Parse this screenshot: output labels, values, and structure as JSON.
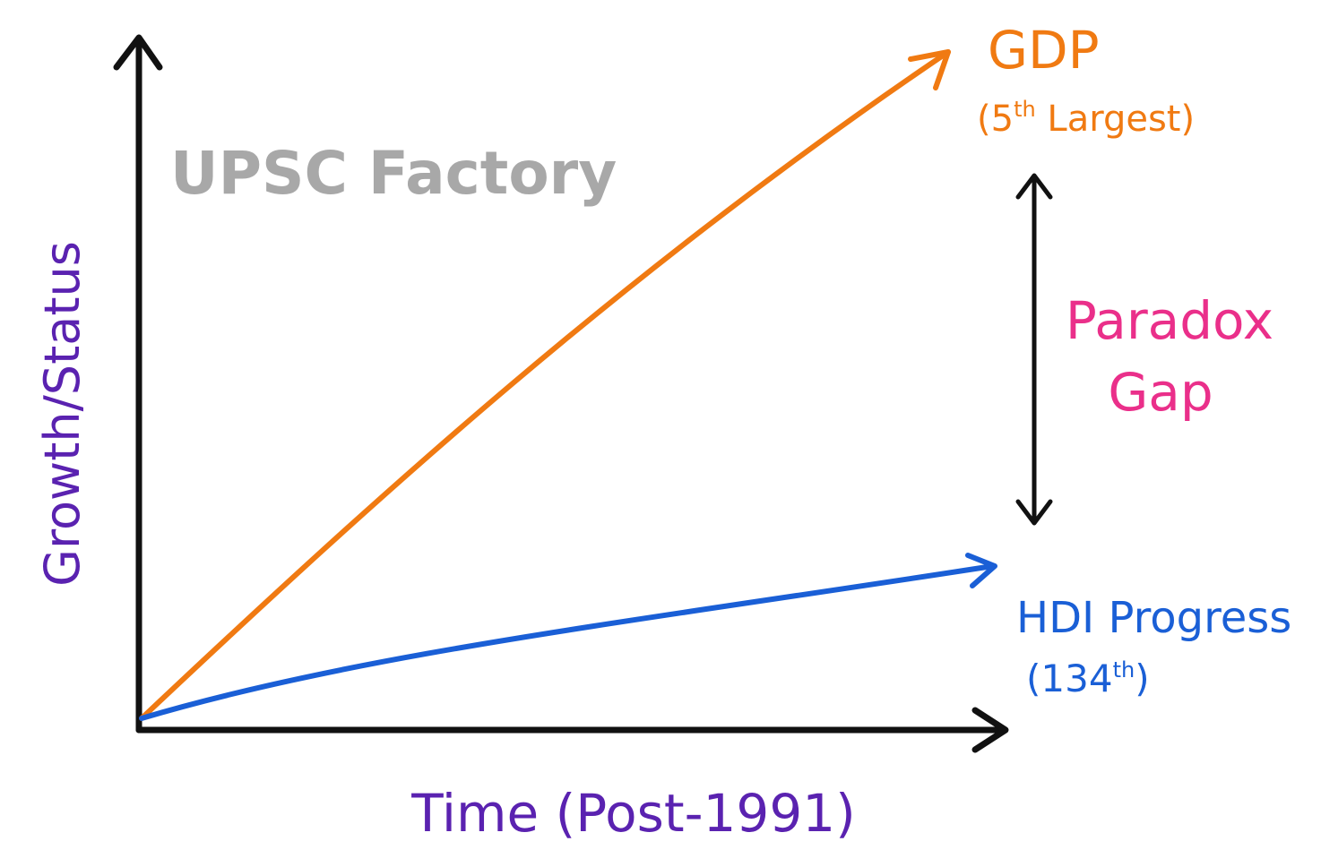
{
  "watermark": "UPSC Factory",
  "axes": {
    "y_label": "Growth/Status",
    "x_label": "Time (Post-1991)"
  },
  "gdp": {
    "label": "GDP",
    "sub_open": "(5",
    "sub_sup": "th",
    "sub_close": " Largest)",
    "color": "#f07a12"
  },
  "hdi": {
    "label": "HDI Progress",
    "sub_open": "(134",
    "sub_sup": "th",
    "sub_close": ")",
    "color": "#1a5fd6"
  },
  "gap": {
    "line1": "Paradox",
    "line2": "Gap",
    "color": "#ea2f8a"
  },
  "colors": {
    "axis": "#111111",
    "axis_label": "#5a22b0",
    "watermark": "#a8a8a8"
  }
}
